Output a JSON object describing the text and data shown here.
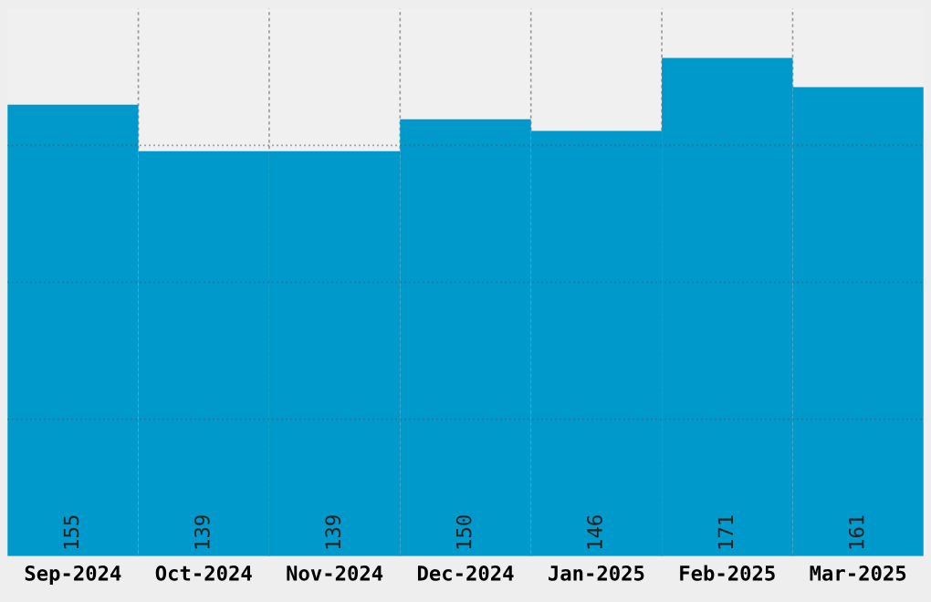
{
  "chart_data": {
    "type": "bar",
    "categories": [
      "Sep-2024",
      "Oct-2024",
      "Nov-2024",
      "Dec-2024",
      "Jan-2025",
      "Feb-2025",
      "Mar-2025"
    ],
    "values": [
      155,
      139,
      139,
      150,
      146,
      171,
      161
    ],
    "color": "#0099cc",
    "ylim": [
      0,
      188
    ],
    "yticks": [
      {
        "value": 47,
        "label": null
      },
      {
        "value": 94,
        "label": null
      },
      {
        "value": 141,
        "label": null
      }
    ],
    "grid": true,
    "tick_labels": "x",
    "data_labels": true
  }
}
